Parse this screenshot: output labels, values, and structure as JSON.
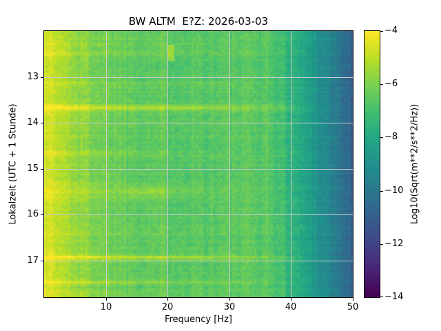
{
  "figure": {
    "background": "#ffffff",
    "text_color": "#000000"
  },
  "chart_data": {
    "type": "heatmap",
    "title": "BW ALTM  E?Z: 2026-03-03",
    "x": {
      "label": "Frequency [Hz]",
      "range": [
        0,
        50
      ],
      "ticks": [
        {
          "v": 10,
          "label": "10"
        },
        {
          "v": 20,
          "label": "20"
        },
        {
          "v": 30,
          "label": "30"
        },
        {
          "v": 40,
          "label": "40"
        },
        {
          "v": 50,
          "label": "50"
        }
      ]
    },
    "y": {
      "label": "Lokalzeit (UTC + 1 Stunde)",
      "range": [
        12.0,
        17.8
      ],
      "ticks": [
        {
          "v": 13,
          "label": "13"
        },
        {
          "v": 14,
          "label": "14"
        },
        {
          "v": 15,
          "label": "15"
        },
        {
          "v": 16,
          "label": "16"
        },
        {
          "v": 17,
          "label": "17"
        }
      ]
    },
    "grid": true,
    "grid_color": "#cbcad2",
    "colorbar": {
      "label": "Log10(Sqrt(m**2/s**2/Hz))",
      "range": [
        -14,
        -4
      ],
      "ticks": [
        {
          "v": -4,
          "label": "−4"
        },
        {
          "v": -6,
          "label": "−6"
        },
        {
          "v": -8,
          "label": "−8"
        },
        {
          "v": -10,
          "label": "−10"
        },
        {
          "v": -12,
          "label": "−12"
        },
        {
          "v": -14,
          "label": "−14"
        }
      ]
    },
    "colormap": {
      "name": "viridis",
      "stops": [
        {
          "p": 0.0,
          "c": "#440154"
        },
        {
          "p": 0.1,
          "c": "#482475"
        },
        {
          "p": 0.2,
          "c": "#414487"
        },
        {
          "p": 0.3,
          "c": "#355f8d"
        },
        {
          "p": 0.4,
          "c": "#2a788e"
        },
        {
          "p": 0.5,
          "c": "#21918c"
        },
        {
          "p": 0.6,
          "c": "#22a884"
        },
        {
          "p": 0.7,
          "c": "#44bf70"
        },
        {
          "p": 0.8,
          "c": "#7ad151"
        },
        {
          "p": 0.9,
          "c": "#bddf26"
        },
        {
          "p": 1.0,
          "c": "#fde725"
        }
      ]
    },
    "field": {
      "seed": 1337,
      "bins_freq": 128,
      "bins_time": 116,
      "base_level": -6.6,
      "low_freq_boost": {
        "amp": 2.1,
        "scale": 7.0,
        "pow": 1.1
      },
      "high_freq_rolloff": {
        "start": 36,
        "span": 14,
        "amp": 4.3,
        "pow": 1.25
      },
      "noise": {
        "col": 0.5,
        "row": 0.28,
        "cell": 0.55
      },
      "streaks": [
        {
          "t": 12.3,
          "amp": 0.28,
          "f0": 6,
          "f1": 42,
          "sig": 0.035
        },
        {
          "t": 12.5,
          "amp": 0.42,
          "f0": 8,
          "f1": 45,
          "sig": 0.035
        },
        {
          "t": 12.78,
          "amp": -0.28,
          "f0": 30,
          "f1": 48,
          "sig": 0.04
        },
        {
          "t": 13.15,
          "amp": 0.3,
          "f0": 28,
          "f1": 42,
          "sig": 0.03
        },
        {
          "t": 13.67,
          "amp": 1.4,
          "f0": 22,
          "f1": 48,
          "sig": 0.038
        },
        {
          "t": 13.84,
          "amp": 0.26,
          "f0": 10,
          "f1": 40,
          "sig": 0.03
        },
        {
          "t": 14.66,
          "amp": 0.5,
          "f0": 6,
          "f1": 30,
          "sig": 0.035
        },
        {
          "t": 15.32,
          "amp": 0.38,
          "f0": 5,
          "f1": 36,
          "sig": 0.04
        },
        {
          "t": 15.5,
          "amp": 0.72,
          "f0": 6,
          "f1": 42,
          "sig": 0.045
        },
        {
          "t": 15.63,
          "amp": 0.34,
          "f0": 5,
          "f1": 36,
          "sig": 0.035
        },
        {
          "t": 16.42,
          "amp": 0.24,
          "f0": 6,
          "f1": 36,
          "sig": 0.035
        },
        {
          "t": 16.93,
          "amp": 1.4,
          "f0": 20,
          "f1": 47,
          "sig": 0.038
        },
        {
          "t": 17.48,
          "amp": 0.78,
          "f0": 14,
          "f1": 45,
          "sig": 0.04
        },
        {
          "t": 17.72,
          "amp": 0.3,
          "f0": 5,
          "f1": 30,
          "sig": 0.035
        }
      ],
      "blobs": [
        {
          "t": 15.5,
          "f": 17,
          "amp": 0.55,
          "tsig": 0.08,
          "fsig": 2.5
        }
      ],
      "dashes": [
        {
          "f": 20.45,
          "fw": 0.55,
          "t0": 12.3,
          "t1": 12.66,
          "amp": 1.15
        }
      ]
    }
  }
}
